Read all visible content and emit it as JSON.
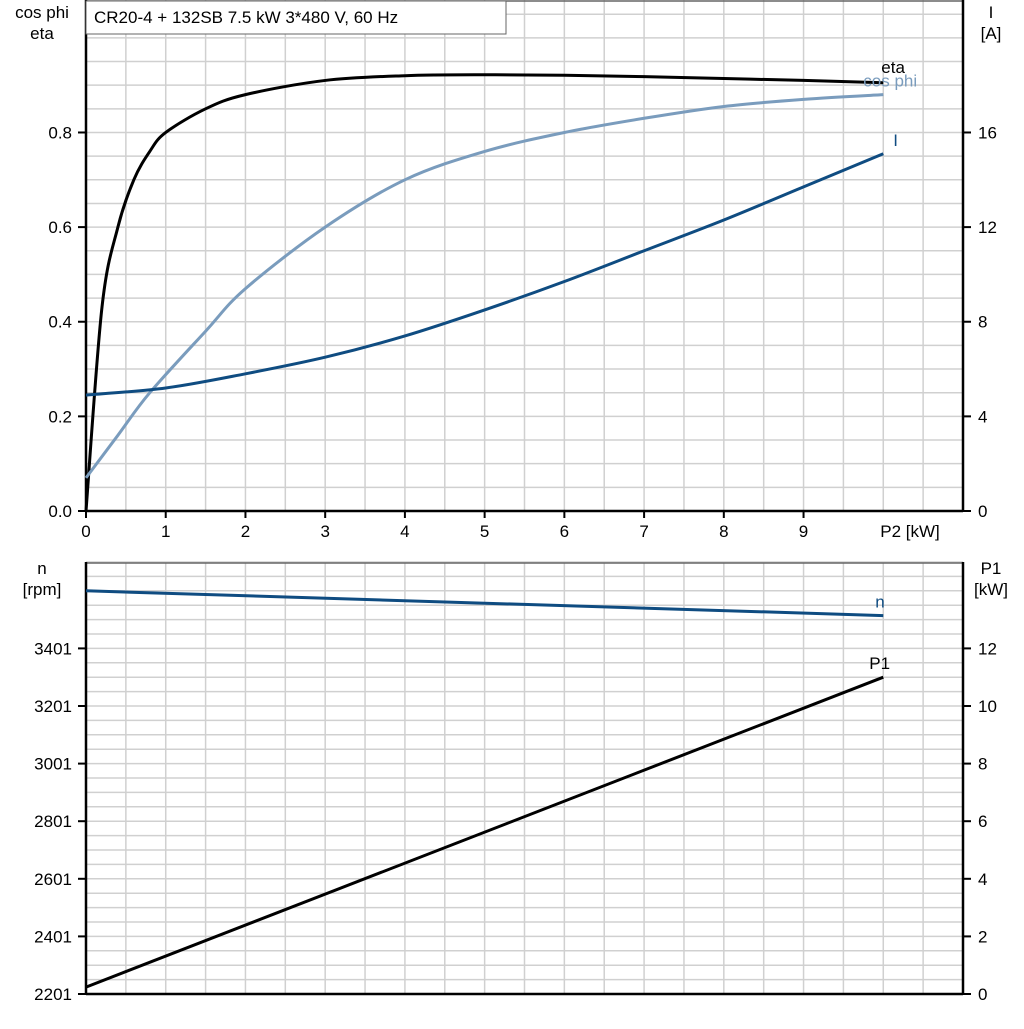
{
  "chart_data": [
    {
      "type": "line",
      "title": "CR20-4 + 132SB   7.5 kW   3*480 V, 60 Hz",
      "xlabel": "P2 [kW]",
      "ylabel_left": [
        "cos phi",
        "eta"
      ],
      "ylabel_right": [
        "I",
        "[A]"
      ],
      "xlim": [
        0,
        11
      ],
      "ylim_left": [
        0,
        1.08
      ],
      "ylim_right": [
        0,
        21.6
      ],
      "x_ticks": [
        "0",
        "1",
        "2",
        "3",
        "4",
        "5",
        "6",
        "7",
        "8",
        "9"
      ],
      "y_left_ticks": [
        "0.0",
        "0.2",
        "0.4",
        "0.6",
        "0.8"
      ],
      "y_right_ticks": [
        "0",
        "4",
        "8",
        "12",
        "16"
      ],
      "grid": true,
      "series": [
        {
          "name": "eta",
          "axis": "left",
          "color": "#000000",
          "x": [
            0,
            0.2,
            0.4,
            0.6,
            0.8,
            1.0,
            1.5,
            2,
            3,
            4,
            5,
            6,
            7,
            8,
            9,
            10
          ],
          "y": [
            0,
            0.43,
            0.6,
            0.7,
            0.76,
            0.8,
            0.85,
            0.88,
            0.91,
            0.92,
            0.922,
            0.921,
            0.918,
            0.914,
            0.91,
            0.905
          ]
        },
        {
          "name": "cos phi",
          "axis": "left",
          "color": "#7a9cbd",
          "x": [
            0,
            0.4,
            0.8,
            1.5,
            2,
            3,
            4,
            5,
            6,
            7,
            8,
            9,
            10
          ],
          "y": [
            0.07,
            0.16,
            0.25,
            0.38,
            0.47,
            0.6,
            0.7,
            0.76,
            0.8,
            0.83,
            0.855,
            0.87,
            0.88
          ]
        },
        {
          "name": "I",
          "axis": "right",
          "color": "#0f4c81",
          "x": [
            0,
            1,
            2,
            3,
            4,
            5,
            6,
            7,
            8,
            9,
            10
          ],
          "y": [
            4.9,
            5.2,
            5.8,
            6.5,
            7.4,
            8.5,
            9.7,
            11.0,
            12.3,
            13.7,
            15.1
          ]
        }
      ]
    },
    {
      "type": "line",
      "ylabel_left": [
        "n",
        "[rpm]"
      ],
      "ylabel_right": [
        "P1",
        "[kW]"
      ],
      "xlim": [
        0,
        11
      ],
      "ylim_left": [
        2201,
        3701
      ],
      "ylim_right": [
        0,
        15
      ],
      "y_left_ticks": [
        "2201",
        "2401",
        "2601",
        "2801",
        "3001",
        "3201",
        "3401"
      ],
      "y_right_ticks": [
        "0",
        "2",
        "4",
        "6",
        "8",
        "10",
        "12"
      ],
      "grid": true,
      "series": [
        {
          "name": "n",
          "axis": "left",
          "color": "#0f4c81",
          "x": [
            0,
            10
          ],
          "y": [
            3601,
            3515
          ]
        },
        {
          "name": "P1",
          "axis": "right",
          "color": "#000000",
          "x": [
            0,
            10
          ],
          "y": [
            0.24,
            11.0
          ]
        }
      ]
    }
  ]
}
